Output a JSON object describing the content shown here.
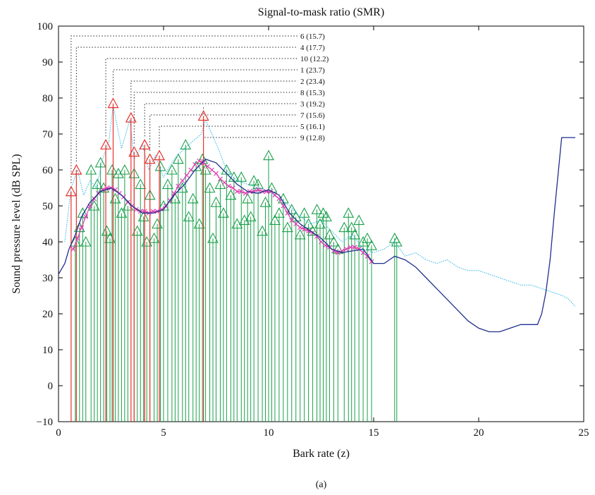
{
  "caption": "(a)",
  "chart_data": {
    "type": "line",
    "title": "Signal-to-mask ratio (SMR)",
    "xlabel": "Bark rate (z)",
    "ylabel": "Sound pressure level (dB SPL)",
    "xlim": [
      0,
      25
    ],
    "ylim": [
      -10,
      100
    ],
    "xticks": [
      0,
      5,
      10,
      15,
      20,
      25
    ],
    "yticks": [
      -10,
      0,
      10,
      20,
      30,
      40,
      50,
      60,
      70,
      80,
      90,
      100
    ],
    "colors": {
      "threshold": "#1f2f8f",
      "spectrum": "#2ab3e6",
      "tonal": "#e8312b",
      "nontonal": "#19a04a",
      "masking": "#e23fb3",
      "annotation": "#222222"
    },
    "series": [
      {
        "key": "threshold",
        "style": "solid",
        "x": [
          0,
          0.3,
          0.5,
          0.8,
          1.1,
          1.5,
          2.0,
          2.5,
          3.0,
          3.5,
          4.0,
          4.5,
          5.0,
          5.5,
          6.0,
          6.5,
          7.0,
          7.5,
          8.0,
          8.5,
          9.0,
          9.5,
          10.0,
          10.5,
          11.0,
          11.5,
          12.0,
          12.5,
          13.0,
          13.5,
          14.0,
          14.5,
          15.0,
          15.5,
          16.0,
          16.5,
          17.0,
          17.5,
          18.0,
          18.5,
          19.0,
          19.5,
          20.0,
          20.5,
          21.0,
          21.5,
          22.0,
          22.5,
          22.8,
          23.0,
          23.2,
          23.4,
          23.6,
          23.8,
          23.95,
          24.2,
          24.6
        ],
        "y": [
          31,
          34,
          38,
          42,
          47,
          51,
          54,
          55,
          53,
          50,
          48,
          48,
          49,
          53,
          56,
          60,
          63,
          62,
          59,
          56,
          54,
          53.5,
          54.5,
          53,
          48,
          45,
          43,
          41,
          38,
          37,
          37.5,
          38,
          34,
          34,
          36,
          35,
          33,
          30,
          27,
          24,
          21,
          18,
          16,
          15,
          15,
          16,
          17,
          17,
          17,
          20,
          26,
          35,
          48,
          60,
          69,
          69,
          69
        ]
      },
      {
        "key": "spectrum",
        "style": "dotted",
        "x": [
          0.3,
          0.6,
          0.9,
          1.2,
          1.5,
          1.8,
          2.1,
          2.4,
          2.6,
          2.8,
          3.0,
          3.2,
          3.4,
          3.6,
          3.8,
          4.0,
          4.3,
          4.6,
          5.0,
          5.5,
          6.0,
          6.4,
          6.8,
          7.0,
          7.3,
          7.6,
          8.0,
          8.5,
          9.0,
          9.5,
          10.0,
          10.5,
          11.0,
          11.5,
          12.0,
          12.5,
          13.0,
          13.5,
          14.0,
          14.5,
          15.0,
          15.5,
          16.0,
          16.5,
          17.0,
          17.5,
          18.0,
          18.5,
          19.0,
          19.5,
          20.0,
          20.5,
          21.0,
          21.5,
          22.0,
          22.5,
          23.0,
          23.5,
          24.0,
          24.3,
          24.6
        ],
        "y": [
          40,
          55,
          60,
          53,
          57,
          55,
          63,
          68,
          78,
          72,
          66,
          70,
          74,
          63,
          65,
          67,
          60,
          64,
          58,
          63,
          66,
          68,
          70,
          74,
          70,
          66,
          60,
          57,
          56,
          55,
          54,
          52,
          50,
          47,
          45,
          46,
          43,
          40,
          42,
          38,
          37,
          38,
          40,
          36,
          37,
          35,
          34,
          35,
          33,
          32,
          32,
          31,
          30,
          29,
          28,
          28,
          27,
          26,
          25,
          24,
          22
        ]
      },
      {
        "key": "masking",
        "style": "solid-with-x-markers",
        "x": [
          0.7,
          0.9,
          1.1,
          1.3,
          1.5,
          1.7,
          1.9,
          2.1,
          2.3,
          2.5,
          2.7,
          2.9,
          3.1,
          3.3,
          3.5,
          3.7,
          3.9,
          4.1,
          4.3,
          4.5,
          4.7,
          4.9,
          5.1,
          5.3,
          5.5,
          5.7,
          5.9,
          6.1,
          6.3,
          6.5,
          6.7,
          6.9,
          7.1,
          7.3,
          7.5,
          7.7,
          7.9,
          8.1,
          8.3,
          8.5,
          8.7,
          8.9,
          9.1,
          9.3,
          9.5,
          9.7,
          9.9,
          10.1,
          10.3,
          10.5,
          10.7,
          10.9,
          11.1,
          11.3,
          11.5,
          11.7,
          11.9,
          12.1,
          12.3,
          12.5,
          12.7,
          12.9,
          13.1,
          13.3,
          13.5,
          13.7,
          13.9,
          14.1,
          14.3,
          14.5,
          14.7,
          14.9
        ],
        "y": [
          38,
          41,
          44,
          47,
          50,
          52,
          53.5,
          54.5,
          55,
          55,
          54.5,
          53.5,
          52.5,
          51,
          50,
          49,
          48.5,
          48.5,
          48,
          48.5,
          48.5,
          49,
          50,
          51.5,
          53.5,
          55.5,
          57,
          58.5,
          60,
          61.5,
          62.5,
          62,
          61,
          60,
          59,
          57.5,
          56.5,
          55.5,
          55,
          54,
          54,
          53.5,
          54,
          54,
          54.5,
          54,
          54,
          54,
          53,
          52,
          50,
          48,
          46,
          45,
          44,
          43.5,
          43,
          42.5,
          41.5,
          40,
          39,
          38.5,
          37.5,
          37,
          37.5,
          38,
          38.5,
          38.5,
          38,
          37,
          36,
          34.5
        ]
      }
    ],
    "tonal_maskers": {
      "x": [
        0.6,
        0.85,
        2.25,
        2.6,
        3.45,
        3.6,
        4.1,
        4.35,
        4.8,
        6.9
      ],
      "y": [
        54,
        60,
        67,
        78.5,
        74.5,
        65,
        67,
        63,
        64,
        75
      ]
    },
    "nontonal_maskers": {
      "x": [
        0.8,
        1.0,
        1.15,
        1.3,
        1.55,
        1.7,
        1.85,
        2.0,
        2.15,
        2.3,
        2.45,
        2.55,
        2.7,
        2.85,
        3.0,
        3.15,
        3.3,
        3.6,
        3.75,
        3.9,
        4.05,
        4.2,
        4.35,
        4.55,
        4.7,
        4.85,
        5.0,
        5.2,
        5.4,
        5.55,
        5.7,
        5.9,
        6.05,
        6.2,
        6.4,
        6.55,
        6.7,
        6.85,
        7.0,
        7.2,
        7.35,
        7.5,
        7.7,
        7.85,
        8.0,
        8.2,
        8.35,
        8.5,
        8.7,
        8.85,
        9.0,
        9.15,
        9.3,
        9.5,
        9.7,
        9.85,
        10.0,
        10.15,
        10.3,
        10.5,
        10.7,
        10.9,
        11.1,
        11.3,
        11.5,
        11.7,
        11.9,
        12.1,
        12.3,
        12.45,
        12.6,
        12.75,
        12.9,
        13.1,
        13.3,
        13.6,
        13.8,
        13.95,
        14.1,
        14.3,
        14.5,
        14.7,
        14.9,
        16.0,
        16.1
      ],
      "y": [
        40,
        44,
        48,
        40,
        60,
        50,
        56,
        62,
        55,
        43,
        41,
        60,
        52,
        59,
        48,
        60,
        50,
        59,
        43,
        56,
        47,
        40,
        53,
        41,
        45,
        61,
        50,
        56,
        60,
        52,
        63,
        55,
        67,
        47,
        52,
        61,
        45,
        63,
        60,
        55,
        41,
        51,
        56,
        48,
        60,
        53,
        58,
        45,
        58,
        46,
        52,
        47,
        57,
        56,
        43,
        51,
        64,
        55,
        46,
        48,
        52,
        44,
        49,
        47,
        42,
        48,
        45,
        43,
        49,
        45,
        48,
        47,
        42,
        40,
        38,
        44,
        48,
        44,
        42,
        46,
        40,
        41,
        39,
        41,
        40
      ]
    },
    "annotations": [
      {
        "label": "6 (15.7)",
        "mx": 0.6,
        "my": 54
      },
      {
        "label": "4 (17.7)",
        "mx": 0.85,
        "my": 60
      },
      {
        "label": "10 (12.2)",
        "mx": 2.25,
        "my": 67
      },
      {
        "label": "1 (23.7)",
        "mx": 2.6,
        "my": 78.5
      },
      {
        "label": "2 (23.4)",
        "mx": 3.45,
        "my": 74.5
      },
      {
        "label": "8 (15.3)",
        "mx": 3.6,
        "my": 65
      },
      {
        "label": "3 (19.2)",
        "mx": 4.1,
        "my": 67
      },
      {
        "label": "7 (15.6)",
        "mx": 4.35,
        "my": 63
      },
      {
        "label": "5 (16.1)",
        "mx": 4.8,
        "my": 64
      },
      {
        "label": "9 (12.8)",
        "mx": 6.9,
        "my": 75
      }
    ]
  }
}
